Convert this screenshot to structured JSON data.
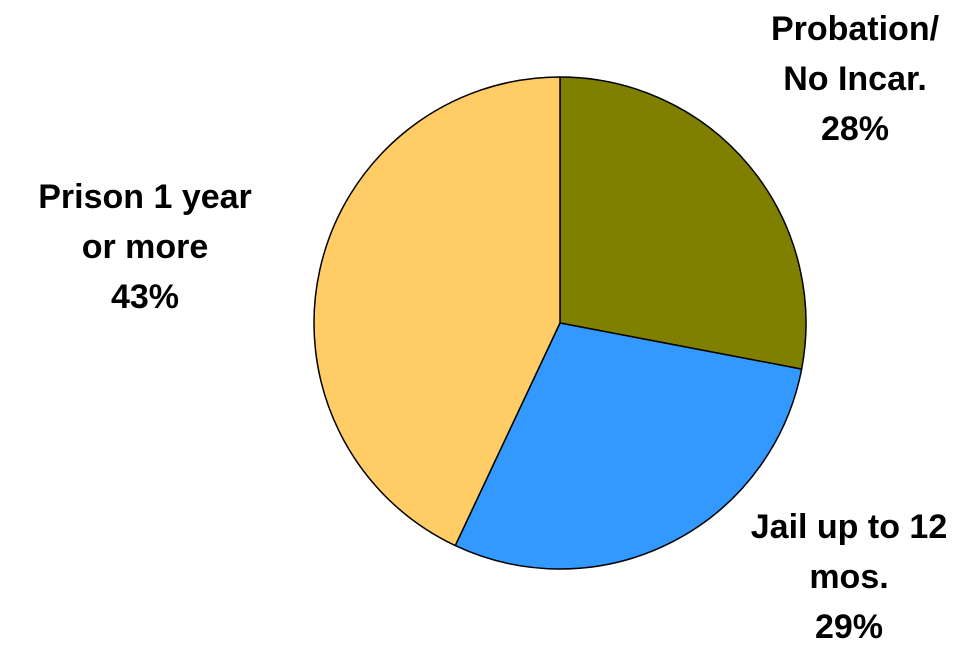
{
  "chart_data": {
    "type": "pie",
    "title": "",
    "start": "12 o'clock",
    "direction": "clockwise",
    "slices": [
      {
        "key": "probation",
        "label_lines": [
          "Probation/",
          "No Incar."
        ],
        "value": 28,
        "value_label": "28%",
        "color": "#808000"
      },
      {
        "key": "jail",
        "label_lines": [
          "Jail up to 12",
          "mos."
        ],
        "value": 29,
        "value_label": "29%",
        "color": "#3399ff"
      },
      {
        "key": "prison",
        "label_lines": [
          "Prison 1 year",
          "or more"
        ],
        "value": 43,
        "value_label": "43%",
        "color": "#ffcc66"
      }
    ]
  }
}
